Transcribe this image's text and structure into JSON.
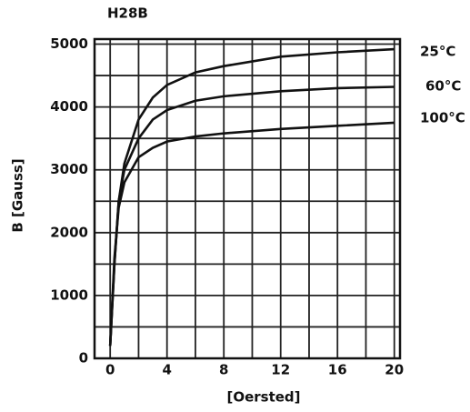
{
  "chart_data": {
    "type": "line",
    "title": "H28B",
    "xlabel": "[Oersted]",
    "ylabel": "B [Gauss]",
    "xlim": [
      -1.1,
      20.4
    ],
    "ylim": [
      0,
      5080
    ],
    "xticks": [
      0,
      4,
      8,
      12,
      16,
      20
    ],
    "yticks": [
      0,
      1000,
      2000,
      3000,
      4000,
      5000
    ],
    "xminor": [
      2,
      6,
      10,
      14,
      18
    ],
    "yminor": [
      500,
      1500,
      2500,
      3500,
      4500
    ],
    "grid": true,
    "x": [
      0,
      0.3,
      0.6,
      1,
      2,
      3,
      4,
      6,
      8,
      12,
      16,
      20
    ],
    "series": [
      {
        "name": "25°C",
        "color": "#111111",
        "values": [
          200,
          1500,
          2500,
          3100,
          3800,
          4150,
          4350,
          4550,
          4650,
          4800,
          4870,
          4920
        ]
      },
      {
        "name": "60°C",
        "color": "#111111",
        "values": [
          200,
          1500,
          2500,
          3000,
          3500,
          3800,
          3950,
          4100,
          4170,
          4250,
          4300,
          4320
        ]
      },
      {
        "name": "100°C",
        "color": "#111111",
        "values": [
          200,
          1600,
          2400,
          2800,
          3200,
          3350,
          3450,
          3530,
          3580,
          3650,
          3700,
          3750
        ]
      }
    ]
  }
}
